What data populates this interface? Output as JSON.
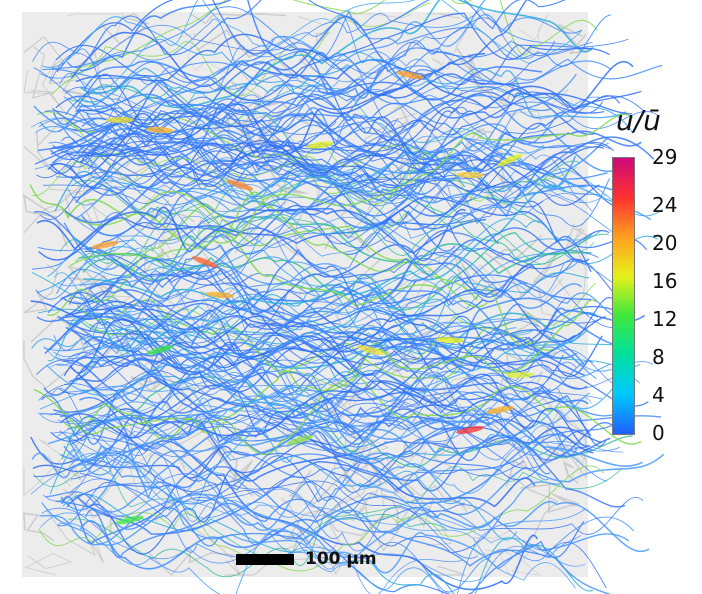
{
  "colorbar": {
    "title": "u/ū",
    "min": 0,
    "max": 29,
    "ticks": [
      "29",
      "24",
      "20",
      "16",
      "12",
      "8",
      "4",
      "0"
    ],
    "tick_values": [
      29,
      24,
      20,
      16,
      12,
      8,
      4,
      0
    ],
    "colors": [
      "#1f5fff",
      "#00c8ff",
      "#00e0a0",
      "#3ee83e",
      "#e6f01a",
      "#ffa020",
      "#ff3030",
      "#cc0a7a"
    ]
  },
  "scale_bar": {
    "label": "100 µm"
  },
  "render": {
    "streamline_color": "#3a7bff",
    "volume_color": "#d8d8d8"
  }
}
